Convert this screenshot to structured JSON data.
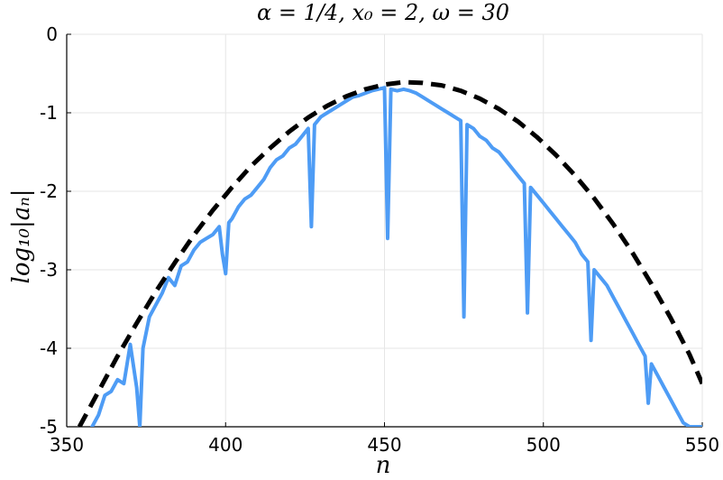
{
  "chart_data": {
    "type": "line",
    "title": "α = 1/4, x₀ = 2, ω = 30",
    "xlabel": "n",
    "ylabel": "log₁₀|aₙ|",
    "xlim": [
      350,
      550
    ],
    "ylim": [
      -5,
      0
    ],
    "xticks": [
      350,
      400,
      450,
      500,
      550
    ],
    "xtick_labels": [
      "350",
      "400",
      "450",
      "500",
      "550"
    ],
    "yticks": [
      0,
      -1,
      -2,
      -3,
      -4,
      -5
    ],
    "ytick_labels": [
      "0",
      "-1",
      "-2",
      "-3",
      "-4",
      "-5"
    ],
    "grid": true,
    "legend": "none",
    "colors": {
      "series": "#4e9cf5",
      "envelope": "#000000"
    },
    "series": [
      {
        "style": "solid",
        "x": [
          358,
          360,
          362,
          364,
          366,
          368,
          370,
          372,
          373,
          374,
          376,
          378,
          380,
          382,
          384,
          386,
          388,
          390,
          392,
          394,
          396,
          398,
          399,
          400,
          401,
          402,
          404,
          406,
          408,
          410,
          412,
          414,
          416,
          418,
          420,
          422,
          424,
          426,
          427,
          428,
          430,
          432,
          434,
          436,
          438,
          440,
          442,
          444,
          446,
          448,
          450,
          451,
          452,
          454,
          456,
          458,
          460,
          462,
          464,
          466,
          468,
          470,
          472,
          474,
          475,
          476,
          478,
          480,
          482,
          484,
          486,
          488,
          490,
          492,
          494,
          495,
          496,
          498,
          500,
          502,
          504,
          506,
          508,
          510,
          512,
          514,
          515,
          516,
          518,
          520,
          522,
          524,
          526,
          528,
          530,
          532,
          533,
          534,
          536,
          538,
          540,
          542,
          544,
          546,
          548,
          550
        ],
        "y": [
          -5.0,
          -4.85,
          -4.6,
          -4.55,
          -4.4,
          -4.45,
          -3.95,
          -4.5,
          -5.0,
          -4.0,
          -3.6,
          -3.45,
          -3.3,
          -3.1,
          -3.2,
          -2.95,
          -2.9,
          -2.75,
          -2.65,
          -2.6,
          -2.55,
          -2.45,
          -2.8,
          -3.05,
          -2.4,
          -2.35,
          -2.2,
          -2.1,
          -2.05,
          -1.95,
          -1.85,
          -1.7,
          -1.6,
          -1.55,
          -1.45,
          -1.4,
          -1.3,
          -1.2,
          -2.45,
          -1.15,
          -1.05,
          -1.0,
          -0.95,
          -0.9,
          -0.85,
          -0.8,
          -0.78,
          -0.75,
          -0.72,
          -0.7,
          -0.68,
          -2.6,
          -0.7,
          -0.72,
          -0.7,
          -0.72,
          -0.75,
          -0.8,
          -0.85,
          -0.9,
          -0.95,
          -1.0,
          -1.05,
          -1.1,
          -3.6,
          -1.15,
          -1.2,
          -1.3,
          -1.35,
          -1.45,
          -1.5,
          -1.6,
          -1.7,
          -1.8,
          -1.9,
          -3.55,
          -1.95,
          -2.05,
          -2.15,
          -2.25,
          -2.35,
          -2.45,
          -2.55,
          -2.65,
          -2.8,
          -2.9,
          -3.9,
          -3.0,
          -3.1,
          -3.2,
          -3.35,
          -3.5,
          -3.65,
          -3.8,
          -3.95,
          -4.1,
          -4.7,
          -4.2,
          -4.35,
          -4.5,
          -4.65,
          -4.8,
          -4.95,
          -5.0,
          -5.0,
          -5.0
        ]
      },
      {
        "style": "dashed",
        "x": [
          354,
          360,
          366,
          372,
          378,
          384,
          390,
          396,
          402,
          408,
          414,
          420,
          426,
          432,
          438,
          444,
          450,
          456,
          462,
          468,
          474,
          480,
          486,
          492,
          498,
          504,
          510,
          516,
          522,
          528,
          534,
          540,
          546,
          550
        ],
        "y": [
          -5.0,
          -4.55,
          -4.1,
          -3.68,
          -3.28,
          -2.91,
          -2.56,
          -2.24,
          -1.95,
          -1.68,
          -1.45,
          -1.24,
          -1.06,
          -0.91,
          -0.79,
          -0.7,
          -0.64,
          -0.61,
          -0.62,
          -0.65,
          -0.72,
          -0.82,
          -0.95,
          -1.11,
          -1.31,
          -1.54,
          -1.8,
          -2.09,
          -2.42,
          -2.78,
          -3.18,
          -3.61,
          -4.08,
          -4.45
        ]
      }
    ]
  }
}
